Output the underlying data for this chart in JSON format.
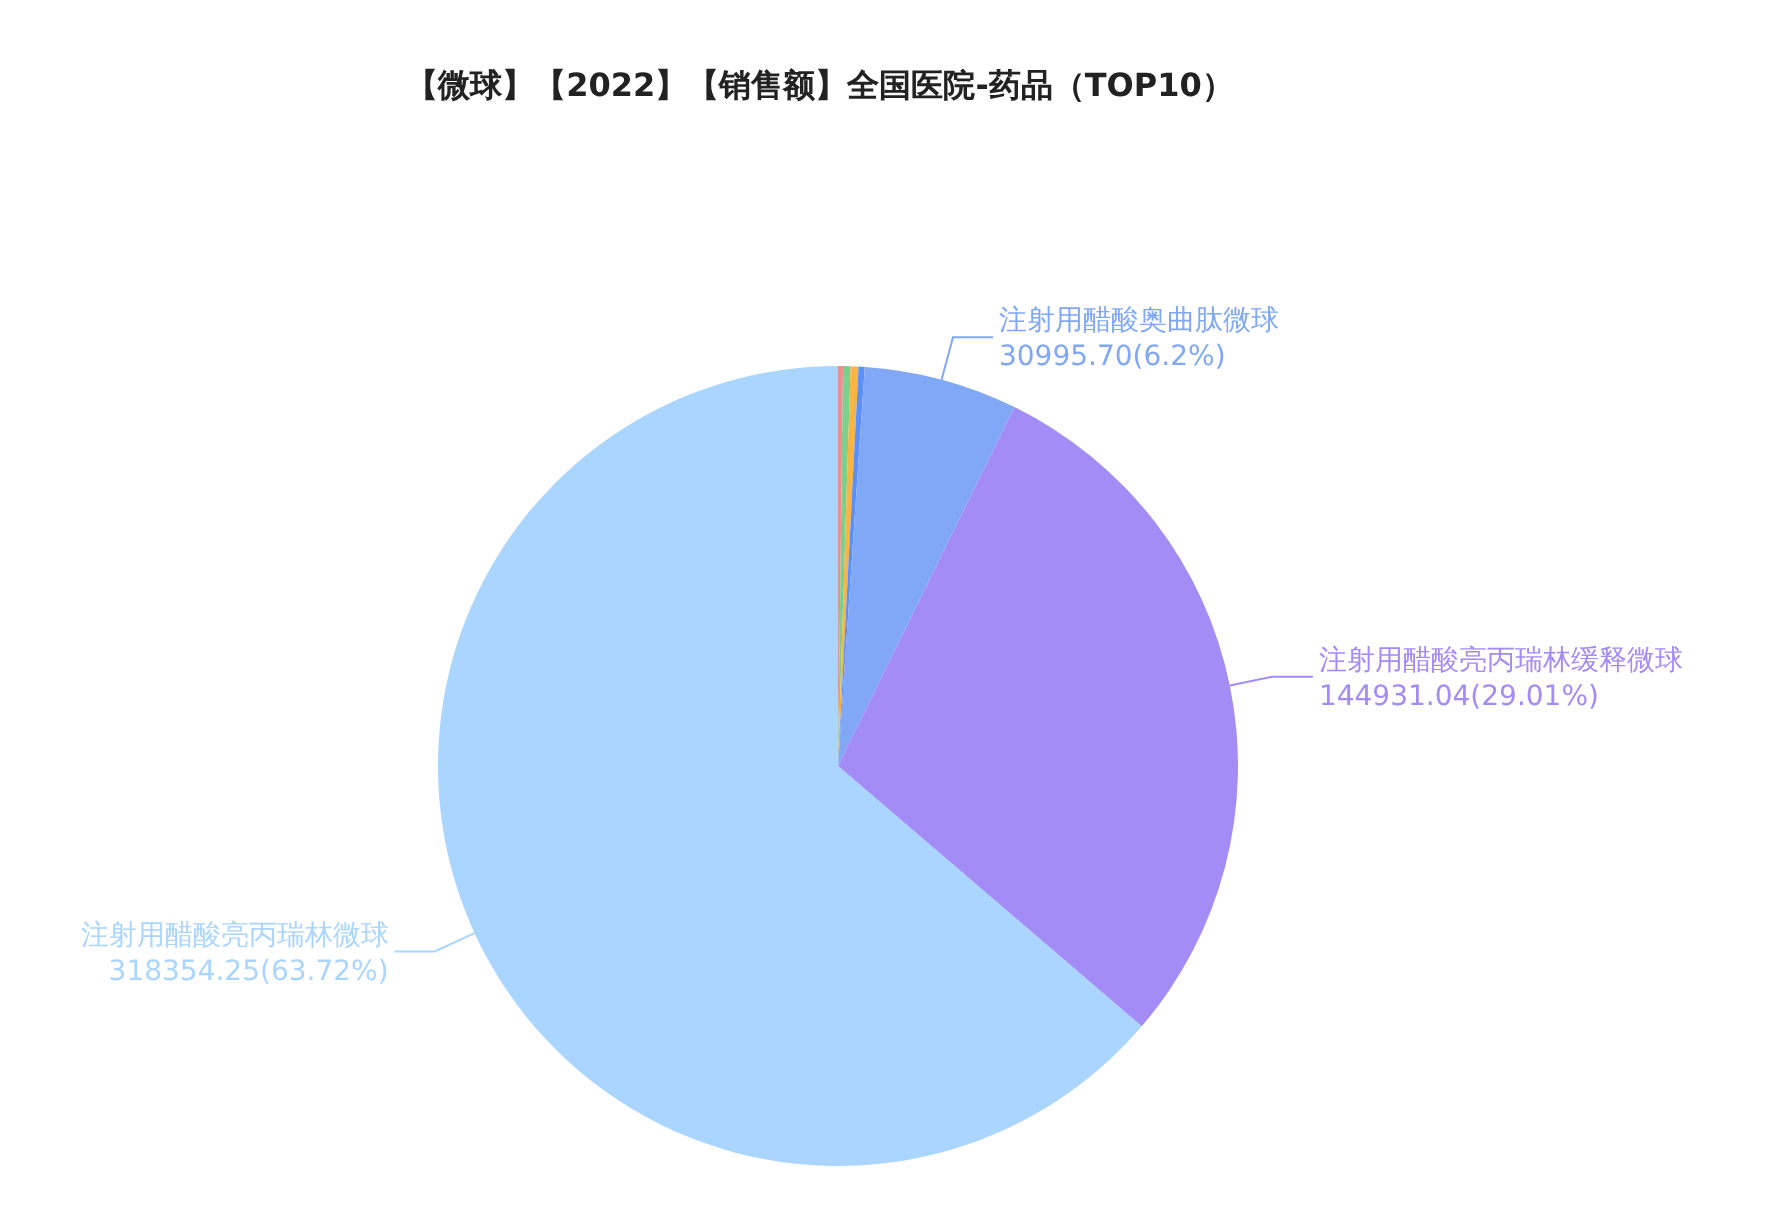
{
  "chart_data": {
    "type": "pie",
    "title": "【微球】【2022】【销售额】全国医院-药品（TOP10）",
    "categories": [
      null,
      null,
      null,
      null,
      "注射用醋酸奥曲肽微球",
      "注射用醋酸亮丙瑞林缓释微球",
      "注射用醋酸亮丙瑞林微球"
    ],
    "values": [
      1000,
      1500,
      1600,
      1230,
      30995.7,
      144931.04,
      318354.25
    ],
    "colors": [
      "#ee8f8f",
      "#7cd08c",
      "#f6b544",
      "#5b8ff9",
      "#80a8f6",
      "#a38cf6",
      "#aad5fe"
    ],
    "value_labels": [
      null,
      null,
      null,
      null,
      "30995.70(6.2%)",
      "144931.04(29.01%)",
      "318354.25(63.72%)"
    ]
  }
}
